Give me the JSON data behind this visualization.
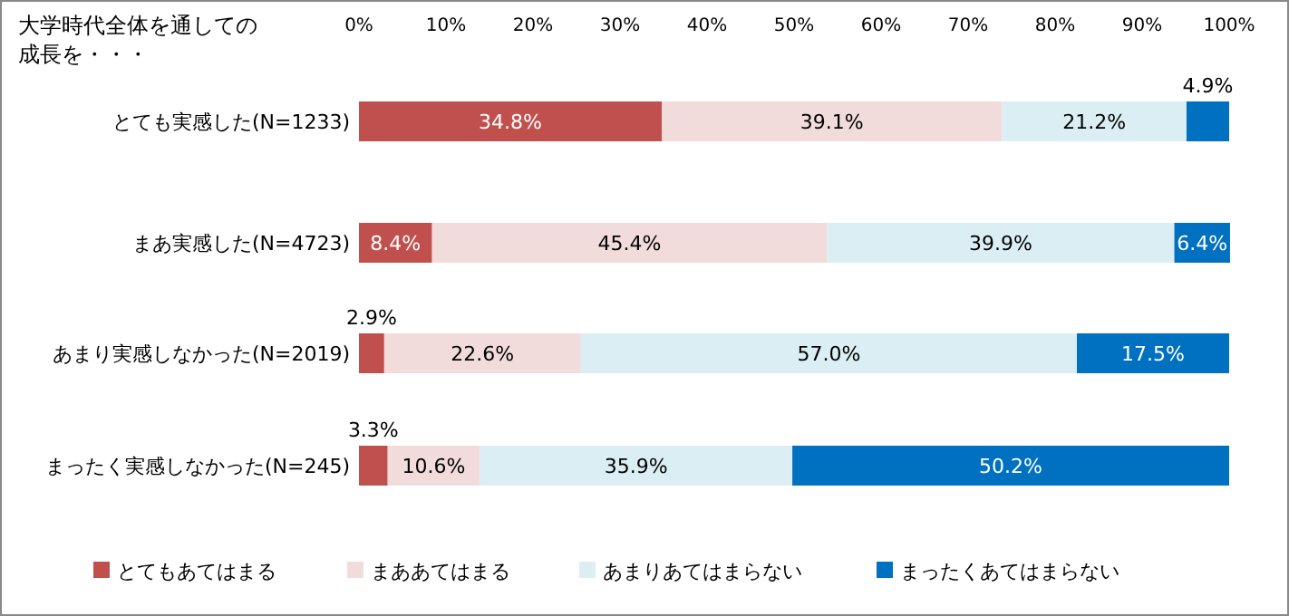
{
  "chart_data": {
    "type": "bar",
    "orientation": "horizontal",
    "stacked": true,
    "title": "大学時代全体を通しての成長を・・・",
    "categories": [
      "とても実感した(N=1233)",
      "まあ実感した(N=4723)",
      "あまり実感しなかった(N=2019)",
      "まったく実感しなかった(N=245)"
    ],
    "series": [
      {
        "name": "とてもあてはまる",
        "color": "#c0504d",
        "values": [
          34.8,
          8.4,
          2.9,
          3.3
        ],
        "value_labels": [
          "34.8%",
          "8.4%",
          "2.9%",
          "3.3%"
        ]
      },
      {
        "name": "まああてはまる",
        "color": "#f2dcdb",
        "values": [
          39.1,
          45.4,
          22.6,
          10.6
        ],
        "value_labels": [
          "39.1%",
          "45.4%",
          "22.6%",
          "10.6%"
        ]
      },
      {
        "name": "あまりあてはまらない",
        "color": "#daeef3",
        "values": [
          21.2,
          39.9,
          57.0,
          35.9
        ],
        "value_labels": [
          "21.2%",
          "39.9%",
          "57.0%",
          "35.9%"
        ]
      },
      {
        "name": "まったくあてはまらない",
        "color": "#0070c0",
        "values": [
          4.9,
          6.4,
          17.5,
          50.2
        ],
        "value_labels": [
          "4.9%",
          "6.4%",
          "17.5%",
          "50.2%"
        ]
      }
    ],
    "xlim": [
      0,
      100
    ],
    "xticks": [
      {
        "value": 0,
        "label": "0%"
      },
      {
        "value": 10,
        "label": "10%"
      },
      {
        "value": 20,
        "label": "20%"
      },
      {
        "value": 30,
        "label": "30%"
      },
      {
        "value": 40,
        "label": "40%"
      },
      {
        "value": 50,
        "label": "50%"
      },
      {
        "value": 60,
        "label": "60%"
      },
      {
        "value": 70,
        "label": "70%"
      },
      {
        "value": 80,
        "label": "80%"
      },
      {
        "value": 90,
        "label": "90%"
      },
      {
        "value": 100,
        "label": "100%"
      }
    ],
    "legend": "bottom",
    "grid": false
  }
}
